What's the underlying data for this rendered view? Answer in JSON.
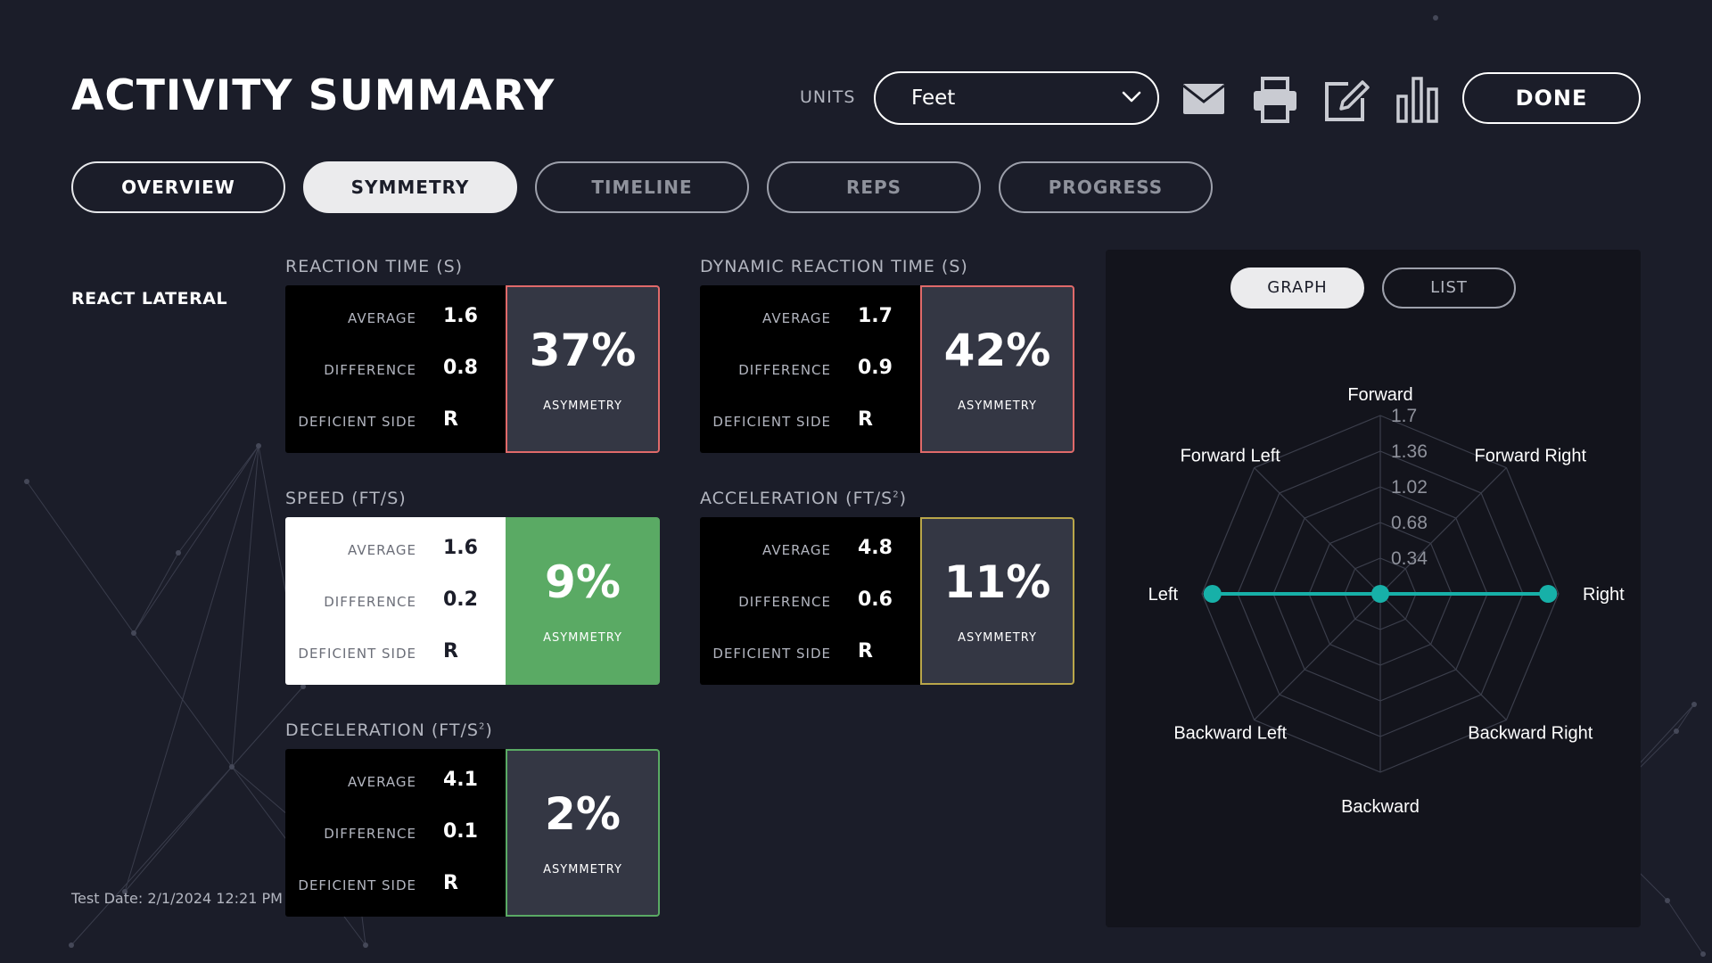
{
  "header": {
    "title": "ACTIVITY SUMMARY",
    "units_label": "UNITS",
    "units_value": "Feet",
    "done_label": "DONE",
    "icons": [
      "mail-icon",
      "print-icon",
      "edit-icon",
      "bar-chart-icon"
    ]
  },
  "tabs": [
    {
      "label": "OVERVIEW",
      "active": false
    },
    {
      "label": "SYMMETRY",
      "active": true
    },
    {
      "label": "TIMELINE",
      "active": false
    },
    {
      "label": "REPS",
      "active": false
    },
    {
      "label": "PROGRESS",
      "active": false
    }
  ],
  "activity": {
    "name": "REACT LATERAL",
    "test_date": "Test Date: 2/1/2024 12:21 PM"
  },
  "stat_labels": {
    "average": "AVERAGE",
    "difference": "DIFFERENCE",
    "deficient_side": "DEFICIENT SIDE",
    "asymmetry": "ASYMMETRY"
  },
  "metrics": [
    {
      "title": "REACTION TIME (S)",
      "title_sup": "",
      "average": "1.6",
      "difference": "0.8",
      "deficient_side": "R",
      "asymmetry": "37%",
      "status_color": "#e06a6a",
      "fill": "#343744"
    },
    {
      "title": "DYNAMIC REACTION TIME (S)",
      "title_sup": "",
      "average": "1.7",
      "difference": "0.9",
      "deficient_side": "R",
      "asymmetry": "42%",
      "status_color": "#e06a6a",
      "fill": "#343744"
    },
    {
      "title": "SPEED (FT/S)",
      "title_sup": "",
      "average": "1.6",
      "difference": "0.2",
      "deficient_side": "R",
      "asymmetry": "9%",
      "status_color": "#5aaa64",
      "fill": "#5aaa64"
    },
    {
      "title": "ACCELERATION (FT/S",
      "title_sup": "2",
      "title_end": ")",
      "average": "4.8",
      "difference": "0.6",
      "deficient_side": "R",
      "asymmetry": "11%",
      "status_color": "#b9a64a",
      "fill": "#343744"
    },
    {
      "title": "DECELERATION (FT/S",
      "title_sup": "2",
      "title_end": ")",
      "average": "4.1",
      "difference": "0.1",
      "deficient_side": "R",
      "asymmetry": "2%",
      "status_color": "#5aaa64",
      "fill": "#343744"
    }
  ],
  "panel": {
    "tabs": [
      {
        "label": "GRAPH",
        "active": true
      },
      {
        "label": "LIST",
        "active": false
      }
    ]
  },
  "chart_data": {
    "type": "radar",
    "axes": [
      "Forward",
      "Forward Right",
      "Right",
      "Backward Right",
      "Backward",
      "Backward Left",
      "Left",
      "Forward Left"
    ],
    "tick_labels": [
      "1.7",
      "1.36",
      "1.02",
      "0.68",
      "0.34"
    ],
    "range": [
      0,
      1.7
    ],
    "series": [
      {
        "values": [
          0,
          0,
          1.6,
          0,
          0,
          0,
          1.6,
          0
        ],
        "color": "#17b0a8"
      }
    ],
    "grid": true
  }
}
